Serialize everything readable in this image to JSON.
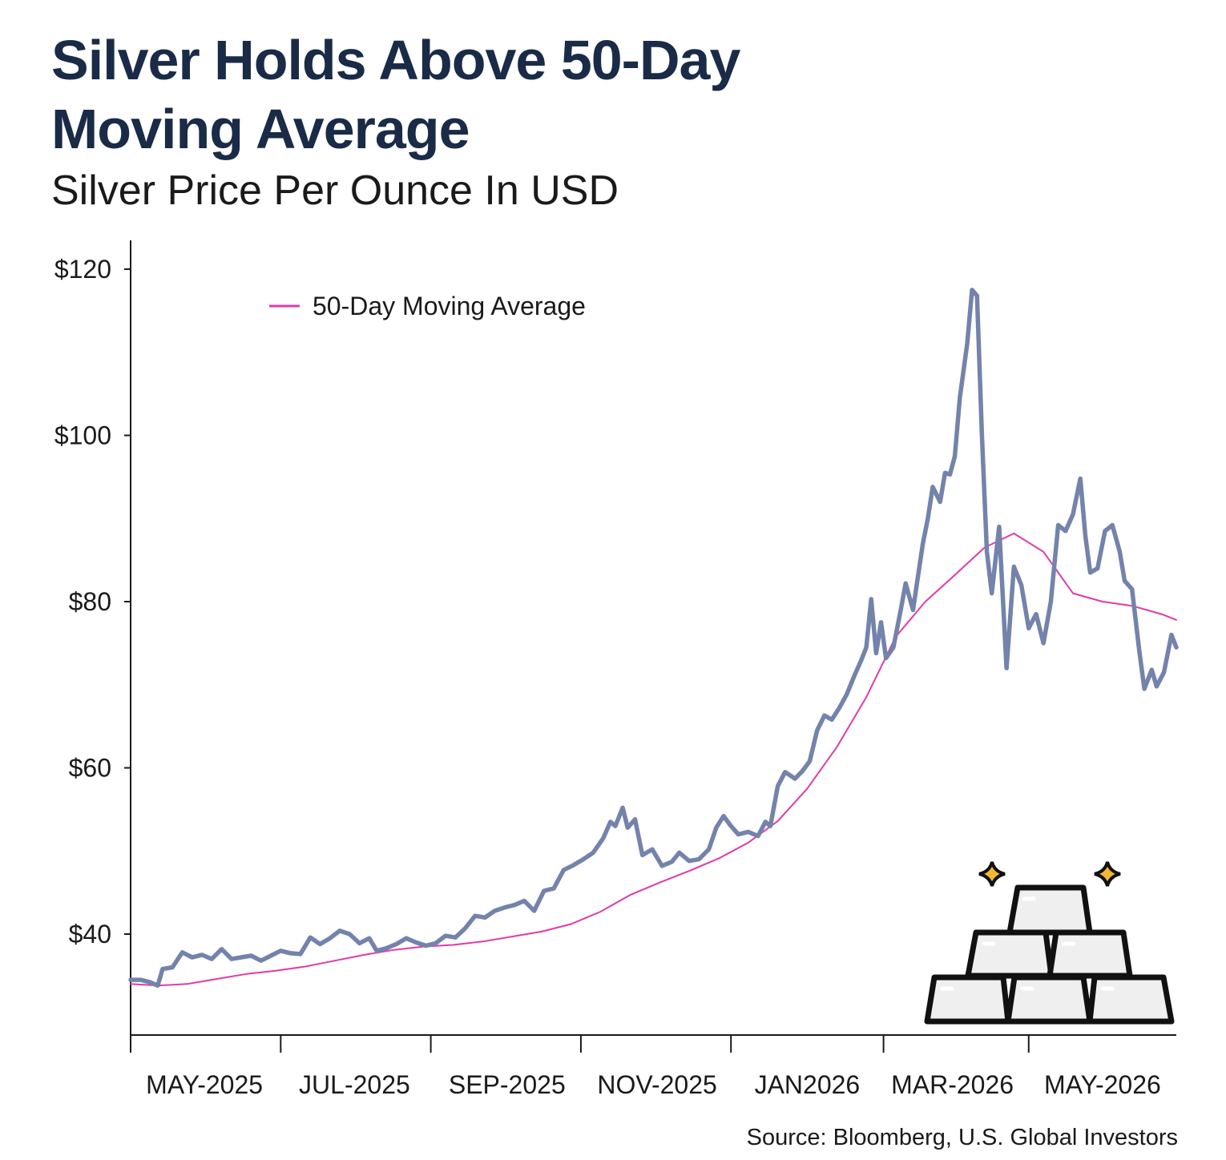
{
  "header": {
    "title": "Silver Holds Above 50-Day Moving Average",
    "subtitle": "Silver Price Per Ounce In USD"
  },
  "footer": {
    "source": "Source: Bloomberg, U.S. Global Investors"
  },
  "colors": {
    "title": "#1a2b47",
    "price_line": "#7483ab",
    "moving_average": "#e03aa9",
    "axis": "#1a1a1a",
    "icon_outline": "#111111",
    "icon_fill": "#efefef",
    "sparkle": "#f2b833"
  },
  "icons": [
    "silver-bars-icon",
    "sparkle-icon"
  ],
  "chart_data": {
    "type": "line",
    "title": "Silver Holds Above 50-Day Moving Average",
    "subtitle": "Silver Price Per Ounce In USD",
    "xlabel": "",
    "ylabel": "",
    "x_range": [
      "2025-04-01",
      "2026-05-31"
    ],
    "ylim": [
      28,
      124
    ],
    "y_ticks": [
      {
        "value": 40,
        "label": "$40"
      },
      {
        "value": 60,
        "label": "$60"
      },
      {
        "value": 80,
        "label": "$80"
      },
      {
        "value": 100,
        "label": "$100"
      },
      {
        "value": 120,
        "label": "$120"
      }
    ],
    "x_ticks": [
      {
        "date": "2025-04-01",
        "label": ""
      },
      {
        "date": "2025-06-01",
        "label": ""
      },
      {
        "date": "2025-08-01",
        "label": ""
      },
      {
        "date": "2025-10-01",
        "label": ""
      },
      {
        "date": "2025-12-01",
        "label": ""
      },
      {
        "date": "2026-02-01",
        "label": ""
      },
      {
        "date": "2026-04-01",
        "label": ""
      }
    ],
    "x_labels": [
      {
        "date": "2025-05-01",
        "label": "MAY-2025"
      },
      {
        "date": "2025-07-01",
        "label": "JUL-2025"
      },
      {
        "date": "2025-09-01",
        "label": "SEP-2025"
      },
      {
        "date": "2025-11-01",
        "label": "NOV-2025"
      },
      {
        "date": "2026-01-01",
        "label": "JAN2026"
      },
      {
        "date": "2026-03-01",
        "label": "MAR-2026"
      },
      {
        "date": "2026-05-01",
        "label": "MAY-2026"
      }
    ],
    "grid": false,
    "legend": {
      "placement": "top-left",
      "entries": [
        "50-Day Moving Average"
      ]
    },
    "series": [
      {
        "id": "price",
        "points": [
          [
            "2025-04-01",
            34.5
          ],
          [
            "2025-04-05",
            34.5
          ],
          [
            "2025-04-09",
            34.2
          ],
          [
            "2025-04-12",
            33.8
          ],
          [
            "2025-04-14",
            35.8
          ],
          [
            "2025-04-18",
            36.0
          ],
          [
            "2025-04-22",
            37.8
          ],
          [
            "2025-04-26",
            37.2
          ],
          [
            "2025-04-30",
            37.5
          ],
          [
            "2025-05-04",
            37.0
          ],
          [
            "2025-05-08",
            38.2
          ],
          [
            "2025-05-12",
            37.0
          ],
          [
            "2025-05-16",
            37.2
          ],
          [
            "2025-05-20",
            37.4
          ],
          [
            "2025-05-24",
            36.8
          ],
          [
            "2025-05-28",
            37.4
          ],
          [
            "2025-06-01",
            38.0
          ],
          [
            "2025-06-05",
            37.7
          ],
          [
            "2025-06-09",
            37.6
          ],
          [
            "2025-06-13",
            39.6
          ],
          [
            "2025-06-17",
            38.8
          ],
          [
            "2025-06-21",
            39.5
          ],
          [
            "2025-06-25",
            40.4
          ],
          [
            "2025-06-29",
            40.0
          ],
          [
            "2025-07-03",
            38.9
          ],
          [
            "2025-07-07",
            39.5
          ],
          [
            "2025-07-10",
            38.0
          ],
          [
            "2025-07-14",
            38.3
          ],
          [
            "2025-07-18",
            38.8
          ],
          [
            "2025-07-22",
            39.5
          ],
          [
            "2025-07-26",
            39.0
          ],
          [
            "2025-07-30",
            38.6
          ],
          [
            "2025-08-03",
            38.9
          ],
          [
            "2025-08-07",
            39.8
          ],
          [
            "2025-08-11",
            39.6
          ],
          [
            "2025-08-15",
            40.7
          ],
          [
            "2025-08-19",
            42.2
          ],
          [
            "2025-08-23",
            42.0
          ],
          [
            "2025-08-27",
            42.8
          ],
          [
            "2025-08-31",
            43.2
          ],
          [
            "2025-09-04",
            43.5
          ],
          [
            "2025-09-08",
            44.0
          ],
          [
            "2025-09-12",
            42.8
          ],
          [
            "2025-09-16",
            45.2
          ],
          [
            "2025-09-20",
            45.5
          ],
          [
            "2025-09-24",
            47.7
          ],
          [
            "2025-09-28",
            48.3
          ],
          [
            "2025-10-02",
            49.0
          ],
          [
            "2025-10-06",
            49.8
          ],
          [
            "2025-10-10",
            51.5
          ],
          [
            "2025-10-13",
            53.5
          ],
          [
            "2025-10-15",
            53.0
          ],
          [
            "2025-10-18",
            55.2
          ],
          [
            "2025-10-20",
            52.8
          ],
          [
            "2025-10-23",
            53.8
          ],
          [
            "2025-10-26",
            49.5
          ],
          [
            "2025-10-30",
            50.2
          ],
          [
            "2025-11-03",
            48.2
          ],
          [
            "2025-11-07",
            48.7
          ],
          [
            "2025-11-10",
            49.8
          ],
          [
            "2025-11-14",
            48.8
          ],
          [
            "2025-11-18",
            49.0
          ],
          [
            "2025-11-22",
            50.2
          ],
          [
            "2025-11-25",
            52.8
          ],
          [
            "2025-11-28",
            54.2
          ],
          [
            "2025-12-01",
            53.0
          ],
          [
            "2025-12-04",
            52.0
          ],
          [
            "2025-12-08",
            52.3
          ],
          [
            "2025-12-12",
            51.8
          ],
          [
            "2025-12-15",
            53.5
          ],
          [
            "2025-12-17",
            53.0
          ],
          [
            "2025-12-20",
            57.8
          ],
          [
            "2025-12-23",
            59.5
          ],
          [
            "2025-12-27",
            58.7
          ],
          [
            "2025-12-30",
            59.6
          ],
          [
            "2026-01-02",
            60.8
          ],
          [
            "2026-01-05",
            64.5
          ],
          [
            "2026-01-08",
            66.3
          ],
          [
            "2026-01-11",
            65.8
          ],
          [
            "2026-01-14",
            67.2
          ],
          [
            "2026-01-17",
            68.8
          ],
          [
            "2026-01-20",
            71.0
          ],
          [
            "2026-01-23",
            73.0
          ],
          [
            "2026-01-25",
            74.5
          ],
          [
            "2026-01-27",
            80.3
          ],
          [
            "2026-01-29",
            73.8
          ],
          [
            "2026-01-31",
            77.5
          ],
          [
            "2026-02-02",
            73.2
          ],
          [
            "2026-02-05",
            74.5
          ],
          [
            "2026-02-08",
            79.0
          ],
          [
            "2026-02-10",
            82.2
          ],
          [
            "2026-02-13",
            79.0
          ],
          [
            "2026-02-17",
            87.0
          ],
          [
            "2026-02-19",
            90.0
          ],
          [
            "2026-02-21",
            93.8
          ],
          [
            "2026-02-24",
            92.0
          ],
          [
            "2026-02-26",
            95.5
          ],
          [
            "2026-02-28",
            95.3
          ],
          [
            "2026-03-02",
            97.5
          ],
          [
            "2026-03-04",
            104.5
          ],
          [
            "2026-03-07",
            111.0
          ],
          [
            "2026-03-09",
            117.5
          ],
          [
            "2026-03-11",
            116.8
          ],
          [
            "2026-03-13",
            100.0
          ],
          [
            "2026-03-15",
            86.0
          ],
          [
            "2026-03-17",
            81.0
          ],
          [
            "2026-03-20",
            89.0
          ],
          [
            "2026-03-23",
            72.0
          ],
          [
            "2026-03-26",
            84.2
          ],
          [
            "2026-03-29",
            82.0
          ],
          [
            "2026-04-01",
            76.8
          ],
          [
            "2026-04-04",
            78.5
          ],
          [
            "2026-04-07",
            75.0
          ],
          [
            "2026-04-10",
            80.0
          ],
          [
            "2026-04-13",
            89.2
          ],
          [
            "2026-04-16",
            88.5
          ],
          [
            "2026-04-19",
            90.5
          ],
          [
            "2026-04-22",
            94.8
          ],
          [
            "2026-04-24",
            88.0
          ],
          [
            "2026-04-26",
            83.5
          ],
          [
            "2026-04-29",
            84.0
          ],
          [
            "2026-05-02",
            88.5
          ],
          [
            "2026-05-05",
            89.2
          ],
          [
            "2026-05-08",
            86.0
          ],
          [
            "2026-05-10",
            82.5
          ],
          [
            "2026-05-13",
            81.5
          ],
          [
            "2026-05-16",
            74.0
          ],
          [
            "2026-05-18",
            69.5
          ],
          [
            "2026-05-21",
            71.8
          ],
          [
            "2026-05-23",
            69.8
          ],
          [
            "2026-05-26",
            71.5
          ],
          [
            "2026-05-29",
            76.0
          ],
          [
            "2026-05-31",
            74.5
          ]
        ]
      },
      {
        "id": "ma50",
        "name": "50-Day Moving Average",
        "points": [
          [
            "2025-04-01",
            34.0
          ],
          [
            "2025-04-12",
            33.8
          ],
          [
            "2025-04-24",
            34.0
          ],
          [
            "2025-05-06",
            34.6
          ],
          [
            "2025-05-18",
            35.2
          ],
          [
            "2025-05-30",
            35.6
          ],
          [
            "2025-06-11",
            36.1
          ],
          [
            "2025-06-23",
            36.8
          ],
          [
            "2025-07-05",
            37.5
          ],
          [
            "2025-07-17",
            38.1
          ],
          [
            "2025-07-29",
            38.5
          ],
          [
            "2025-08-10",
            38.7
          ],
          [
            "2025-08-22",
            39.1
          ],
          [
            "2025-09-03",
            39.7
          ],
          [
            "2025-09-15",
            40.3
          ],
          [
            "2025-09-27",
            41.2
          ],
          [
            "2025-10-09",
            42.7
          ],
          [
            "2025-10-21",
            44.7
          ],
          [
            "2025-11-02",
            46.2
          ],
          [
            "2025-11-14",
            47.6
          ],
          [
            "2025-11-26",
            49.1
          ],
          [
            "2025-12-08",
            51.0
          ],
          [
            "2025-12-20",
            53.6
          ],
          [
            "2026-01-01",
            57.5
          ],
          [
            "2026-01-13",
            62.5
          ],
          [
            "2026-01-25",
            68.5
          ],
          [
            "2026-02-06",
            75.8
          ],
          [
            "2026-02-18",
            80.0
          ],
          [
            "2026-03-02",
            83.2
          ],
          [
            "2026-03-14",
            86.5
          ],
          [
            "2026-03-26",
            88.2
          ],
          [
            "2026-04-07",
            86.0
          ],
          [
            "2026-04-19",
            81.0
          ],
          [
            "2026-05-01",
            80.0
          ],
          [
            "2026-05-13",
            79.5
          ],
          [
            "2026-05-25",
            78.5
          ],
          [
            "2026-05-31",
            77.8
          ]
        ]
      }
    ]
  }
}
